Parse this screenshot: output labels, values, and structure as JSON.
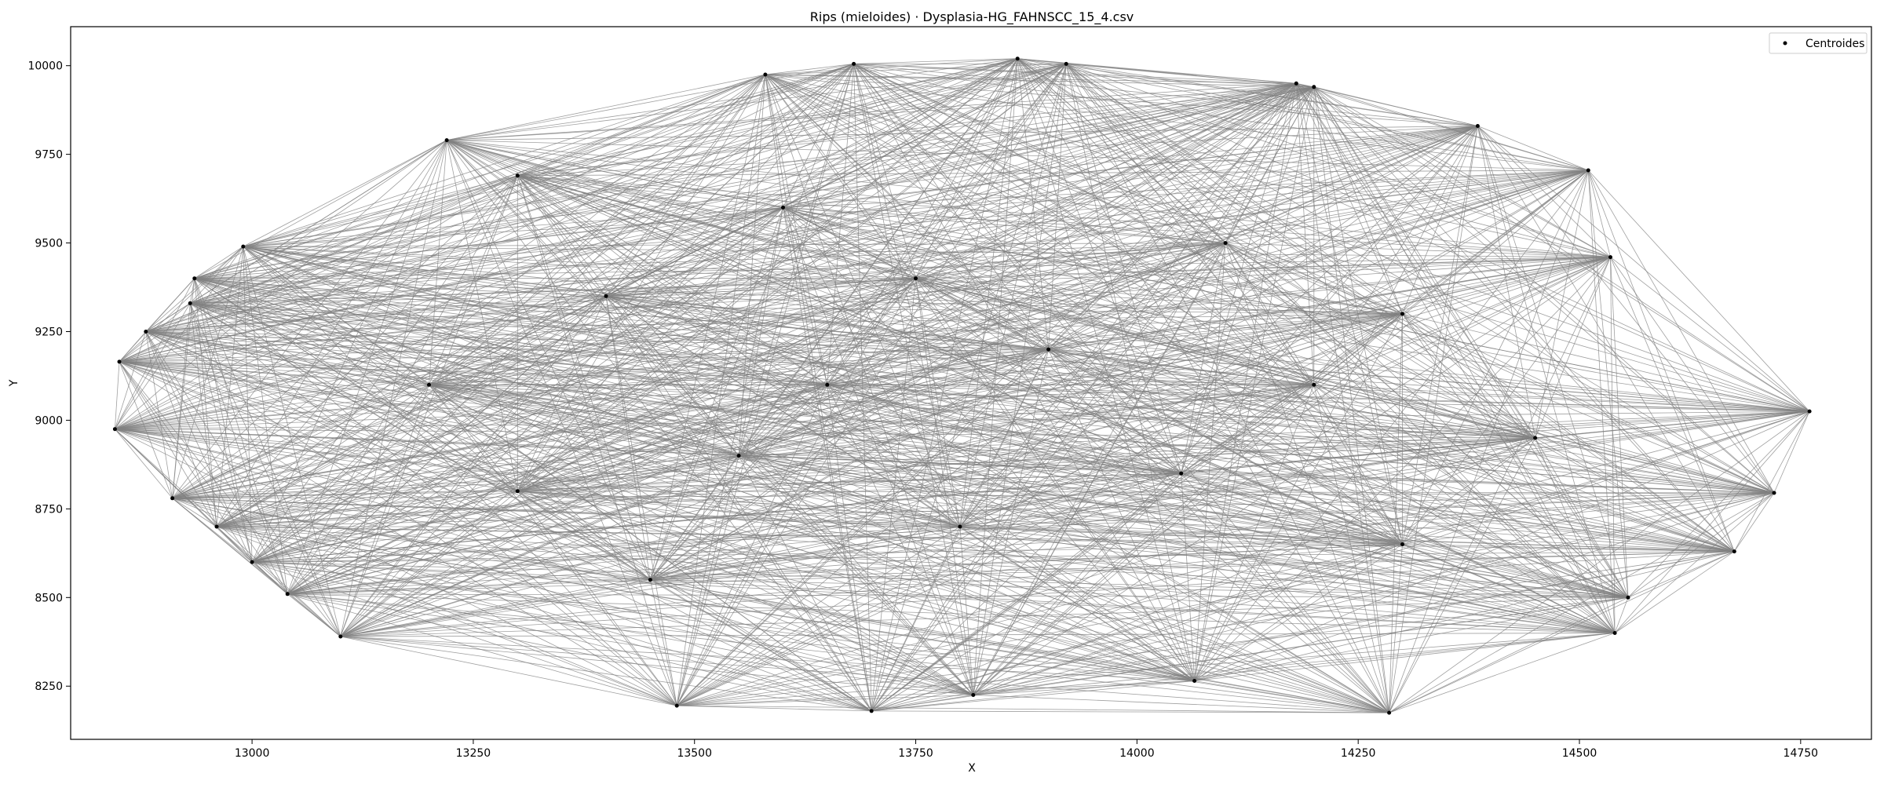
{
  "chart_data": {
    "type": "scatter",
    "title": "Rips (mieloides) · Dysplasia-HG_FAHNSCC_15_4.csv",
    "xlabel": "X",
    "ylabel": "Y",
    "xlim": [
      12795,
      14830
    ],
    "ylim": [
      8100,
      10110
    ],
    "xticks": [
      13000,
      13250,
      13500,
      13750,
      14000,
      14250,
      14500,
      14750
    ],
    "yticks": [
      8250,
      8500,
      8750,
      9000,
      9250,
      9500,
      9750,
      10000
    ],
    "grid": false,
    "legend": {
      "position": "top-right",
      "entries": [
        "Centroides"
      ]
    },
    "colors": {
      "edges": "#808080",
      "points": "#000000",
      "axes": "#000000",
      "background": "#ffffff"
    },
    "series": [
      {
        "name": "Centroides",
        "kind": "scatter",
        "points": [
          {
            "x": 12845,
            "y": 8975
          },
          {
            "x": 12850,
            "y": 9165
          },
          {
            "x": 12880,
            "y": 9250
          },
          {
            "x": 12910,
            "y": 8780
          },
          {
            "x": 12930,
            "y": 9330
          },
          {
            "x": 12935,
            "y": 9400
          },
          {
            "x": 12960,
            "y": 8700
          },
          {
            "x": 13000,
            "y": 8600
          },
          {
            "x": 12990,
            "y": 9490
          },
          {
            "x": 13040,
            "y": 8510
          },
          {
            "x": 13100,
            "y": 8390
          },
          {
            "x": 13220,
            "y": 9790
          },
          {
            "x": 13300,
            "y": 9690
          },
          {
            "x": 13480,
            "y": 8195
          },
          {
            "x": 13580,
            "y": 9975
          },
          {
            "x": 13680,
            "y": 10005
          },
          {
            "x": 13700,
            "y": 8180
          },
          {
            "x": 13815,
            "y": 8225
          },
          {
            "x": 13865,
            "y": 10020
          },
          {
            "x": 13920,
            "y": 10005
          },
          {
            "x": 14065,
            "y": 8265
          },
          {
            "x": 14180,
            "y": 9950
          },
          {
            "x": 14200,
            "y": 9940
          },
          {
            "x": 14285,
            "y": 8175
          },
          {
            "x": 14385,
            "y": 9830
          },
          {
            "x": 14510,
            "y": 9705
          },
          {
            "x": 14535,
            "y": 9460
          },
          {
            "x": 14540,
            "y": 8400
          },
          {
            "x": 14555,
            "y": 8500
          },
          {
            "x": 14675,
            "y": 8630
          },
          {
            "x": 14720,
            "y": 8795
          },
          {
            "x": 14760,
            "y": 9025
          },
          {
            "x": 13400,
            "y": 9350
          },
          {
            "x": 13600,
            "y": 9600
          },
          {
            "x": 13750,
            "y": 9400
          },
          {
            "x": 13900,
            "y": 9200
          },
          {
            "x": 14100,
            "y": 9500
          },
          {
            "x": 14300,
            "y": 9300
          },
          {
            "x": 13550,
            "y": 8900
          },
          {
            "x": 13800,
            "y": 8700
          },
          {
            "x": 14050,
            "y": 8850
          },
          {
            "x": 14300,
            "y": 8650
          },
          {
            "x": 13300,
            "y": 8800
          },
          {
            "x": 13650,
            "y": 9100
          },
          {
            "x": 14200,
            "y": 9100
          },
          {
            "x": 13450,
            "y": 8550
          },
          {
            "x": 14450,
            "y": 8950
          },
          {
            "x": 13200,
            "y": 9100
          }
        ]
      },
      {
        "name": "",
        "kind": "edges",
        "description_rule": "Vietoris-Rips 1-skeleton: all pairs of centroids are connected"
      }
    ]
  }
}
